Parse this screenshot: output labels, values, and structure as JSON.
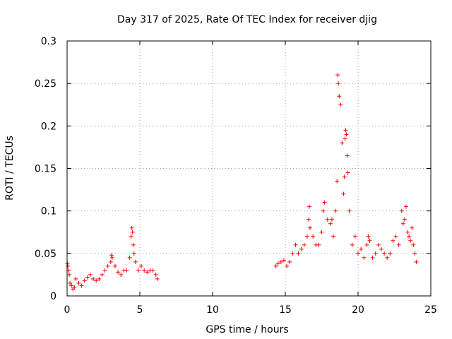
{
  "chart_data": {
    "type": "scatter",
    "title": "Day 317 of 2025, Rate Of TEC Index for receiver djig",
    "xlabel": "GPS time / hours",
    "ylabel": "ROTI / TECUs",
    "xlim": [
      0,
      25
    ],
    "ylim": [
      0,
      0.3
    ],
    "xticks": [
      "0",
      "5",
      "10",
      "15",
      "20",
      "25"
    ],
    "yticks": [
      "0",
      "0.05",
      "0.1",
      "0.15",
      "0.2",
      "0.25",
      "0.3"
    ],
    "grid": true,
    "marker": "+",
    "color": "#ff0000",
    "series": [
      {
        "name": "ROTI",
        "x": [
          0.02,
          0.05,
          0.1,
          0.15,
          0.2,
          0.3,
          0.4,
          0.5,
          0.6,
          0.8,
          1.0,
          1.2,
          1.4,
          1.6,
          1.8,
          2.0,
          2.2,
          2.4,
          2.6,
          2.8,
          3.0,
          3.05,
          3.1,
          3.3,
          3.5,
          3.7,
          3.9,
          4.1,
          4.3,
          4.4,
          4.45,
          4.5,
          4.55,
          4.6,
          4.7,
          4.9,
          5.1,
          5.3,
          5.5,
          5.7,
          5.9,
          6.1,
          6.2,
          14.35,
          14.5,
          14.7,
          14.9,
          15.1,
          15.3,
          15.5,
          15.7,
          15.9,
          16.1,
          16.3,
          16.5,
          16.6,
          16.65,
          16.7,
          16.9,
          17.1,
          17.3,
          17.5,
          17.6,
          17.7,
          17.9,
          18.1,
          18.2,
          18.3,
          18.45,
          18.55,
          18.6,
          18.65,
          18.7,
          18.8,
          18.9,
          19.0,
          19.05,
          19.1,
          19.15,
          19.2,
          19.25,
          19.3,
          19.4,
          19.6,
          19.8,
          20.0,
          20.2,
          20.4,
          20.6,
          20.7,
          20.8,
          21.0,
          21.2,
          21.4,
          21.6,
          21.8,
          22.0,
          22.2,
          22.4,
          22.6,
          22.8,
          23.0,
          23.1,
          23.2,
          23.3,
          23.4,
          23.5,
          23.6,
          23.7,
          23.8,
          23.9,
          24.0
        ],
        "y": [
          0.038,
          0.035,
          0.03,
          0.025,
          0.015,
          0.012,
          0.008,
          0.01,
          0.02,
          0.015,
          0.012,
          0.018,
          0.022,
          0.025,
          0.02,
          0.018,
          0.02,
          0.025,
          0.03,
          0.035,
          0.04,
          0.048,
          0.045,
          0.035,
          0.028,
          0.025,
          0.03,
          0.03,
          0.045,
          0.07,
          0.08,
          0.075,
          0.06,
          0.05,
          0.04,
          0.03,
          0.035,
          0.03,
          0.028,
          0.03,
          0.03,
          0.025,
          0.02,
          0.035,
          0.038,
          0.04,
          0.042,
          0.035,
          0.04,
          0.05,
          0.06,
          0.05,
          0.055,
          0.06,
          0.07,
          0.09,
          0.105,
          0.08,
          0.07,
          0.06,
          0.06,
          0.075,
          0.1,
          0.11,
          0.09,
          0.085,
          0.09,
          0.07,
          0.1,
          0.135,
          0.26,
          0.25,
          0.235,
          0.225,
          0.18,
          0.12,
          0.14,
          0.185,
          0.195,
          0.19,
          0.165,
          0.145,
          0.1,
          0.06,
          0.07,
          0.05,
          0.055,
          0.045,
          0.06,
          0.07,
          0.065,
          0.045,
          0.05,
          0.06,
          0.055,
          0.05,
          0.045,
          0.05,
          0.065,
          0.07,
          0.06,
          0.1,
          0.085,
          0.09,
          0.105,
          0.075,
          0.07,
          0.065,
          0.08,
          0.06,
          0.05,
          0.04
        ]
      }
    ]
  }
}
